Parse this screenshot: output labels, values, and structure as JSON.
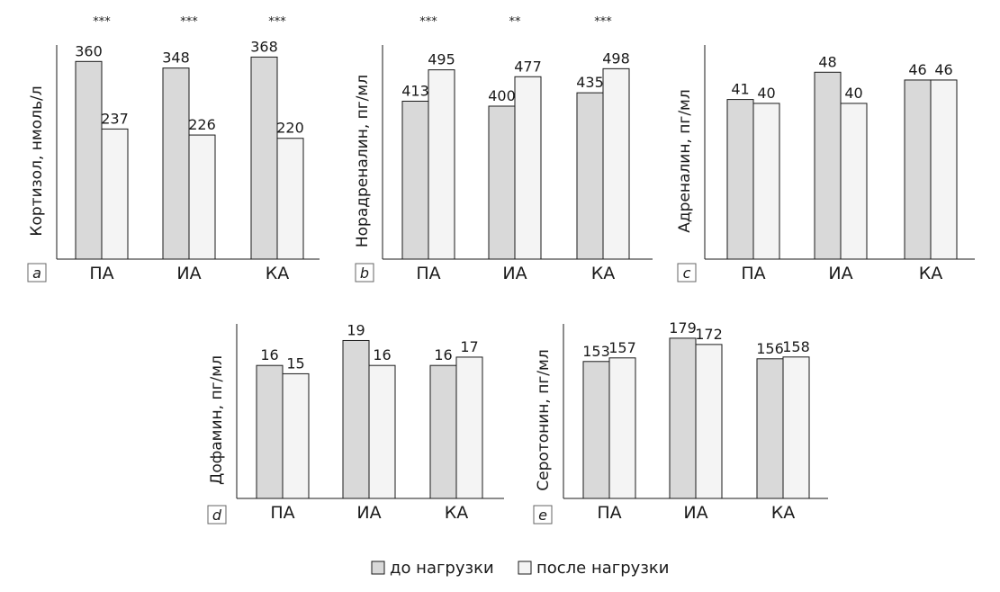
{
  "colors": {
    "before": "#d9d9d9",
    "after": "#f4f4f4",
    "stroke": "#1a1a1a"
  },
  "legend": {
    "before": "до нагрузки",
    "after": "после нагрузки"
  },
  "chart_data": [
    {
      "type": "bar",
      "panel": "a",
      "ylabel": "Кортизол, нмоль/л",
      "categories": [
        "ПА",
        "ИА",
        "КА"
      ],
      "ylim": [
        0,
        390
      ],
      "series": [
        {
          "name": "до нагрузки",
          "values": [
            360,
            348,
            368
          ]
        },
        {
          "name": "после нагрузки",
          "values": [
            237,
            226,
            220
          ]
        }
      ],
      "significance": [
        "***",
        "***",
        "***"
      ]
    },
    {
      "type": "bar",
      "panel": "b",
      "ylabel": "Норадреналин, пг/мл",
      "categories": [
        "ПА",
        "ИА",
        "КА"
      ],
      "ylim": [
        0,
        560
      ],
      "series": [
        {
          "name": "до нагрузки",
          "values": [
            413,
            400,
            435
          ]
        },
        {
          "name": "после нагрузки",
          "values": [
            495,
            477,
            498
          ]
        }
      ],
      "significance": [
        "***",
        "**",
        "***"
      ]
    },
    {
      "type": "bar",
      "panel": "c",
      "ylabel": "Адреналин, пг/мл",
      "categories": [
        "ПА",
        "ИА",
        "КА"
      ],
      "ylim": [
        0,
        55
      ],
      "series": [
        {
          "name": "до нагрузки",
          "values": [
            41,
            48,
            46
          ]
        },
        {
          "name": "после нагрузки",
          "values": [
            40,
            40,
            46
          ]
        }
      ],
      "significance": [
        "",
        "",
        ""
      ]
    },
    {
      "type": "bar",
      "panel": "d",
      "ylabel": "Дофамин, пг/мл",
      "categories": [
        "ПА",
        "ИА",
        "КА"
      ],
      "ylim": [
        0,
        21
      ],
      "series": [
        {
          "name": "до нагрузки",
          "values": [
            16,
            19,
            16
          ]
        },
        {
          "name": "после нагрузки",
          "values": [
            15,
            16,
            17
          ]
        }
      ],
      "significance": [
        "",
        "",
        ""
      ]
    },
    {
      "type": "bar",
      "panel": "e",
      "ylabel": "Серотонин, пг/мл",
      "categories": [
        "ПА",
        "ИА",
        "КА"
      ],
      "ylim": [
        0,
        195
      ],
      "series": [
        {
          "name": "до нагрузки",
          "values": [
            153,
            179,
            156
          ]
        },
        {
          "name": "после нагрузки",
          "values": [
            157,
            172,
            158
          ]
        }
      ],
      "significance": [
        "",
        "",
        ""
      ]
    }
  ]
}
